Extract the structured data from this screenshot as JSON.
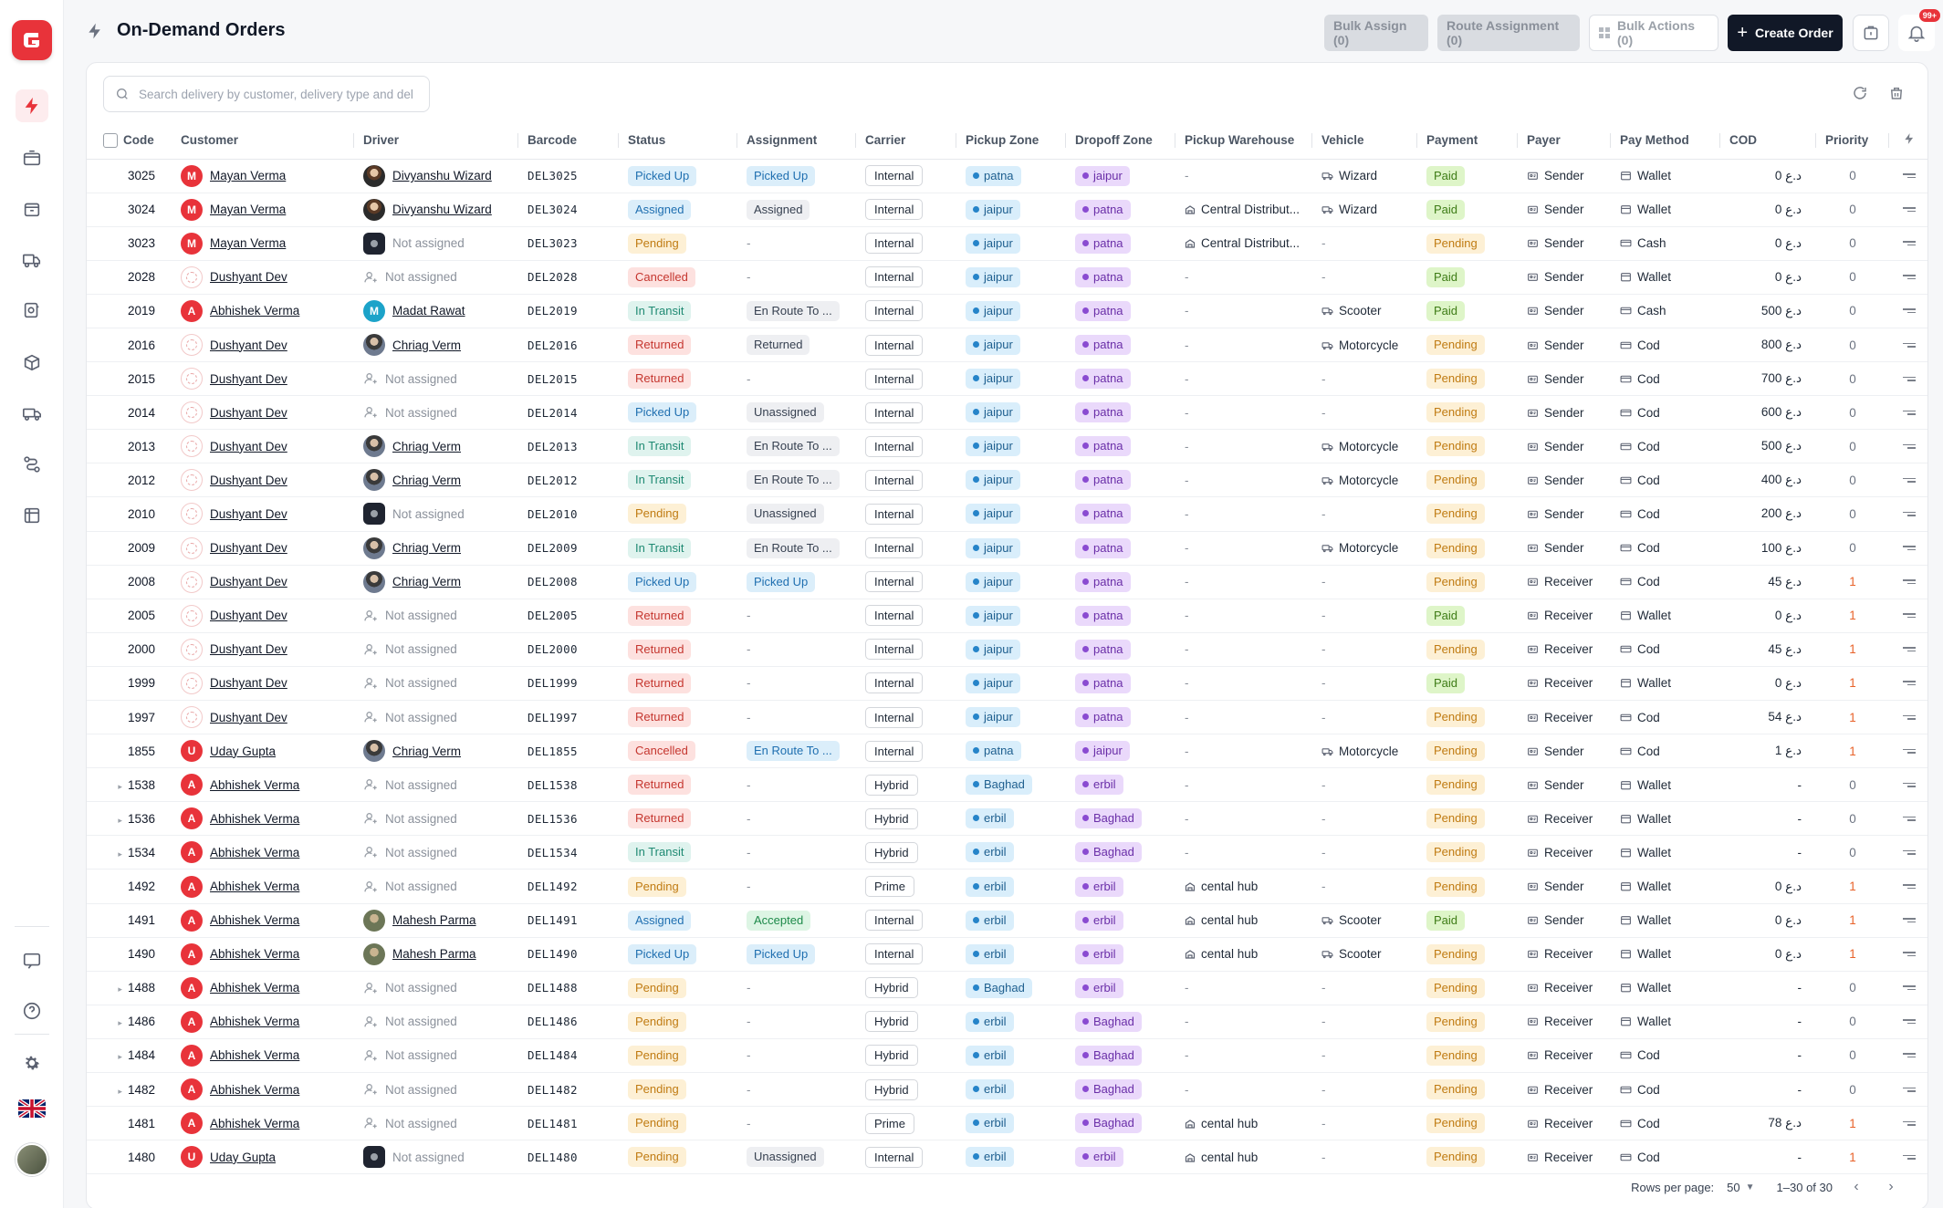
{
  "page": {
    "title": "On-Demand Orders",
    "bulk_assign": "Bulk Assign (0)",
    "route_assignment": "Route Assignment (0)",
    "bulk_actions": "Bulk Actions (0)",
    "create_order": "Create Order",
    "notifications_badge": "99+"
  },
  "search": {
    "placeholder": "Search delivery by customer, delivery type and del"
  },
  "columns": [
    "Code",
    "Customer",
    "Driver",
    "Barcode",
    "Status",
    "Assignment",
    "Carrier",
    "Pickup Zone",
    "Dropoff Zone",
    "Pickup Warehouse",
    "Vehicle",
    "Payment",
    "Payer",
    "Pay Method",
    "COD",
    "Priority"
  ],
  "not_assigned_label": "Not assigned",
  "rows": [
    {
      "code": "3025",
      "exp": false,
      "cust": "Mayan Verma",
      "cav": "M",
      "ctype": "red",
      "drv": "Divyanshu Wizard",
      "dav": "photo1",
      "bar": "DEL3025",
      "st": "Picked Up",
      "stc": "st-picked",
      "as": "Picked Up",
      "asc": "st-picked",
      "car": "Internal",
      "pz": "patna",
      "pzc": "zone-blue",
      "dz": "jaipur",
      "dzc": "zone-purple",
      "wh": "-",
      "veh": "Wizard",
      "pay": "Paid",
      "payc": "pay-paid",
      "payer": "Sender",
      "pm": "Wallet",
      "cod": "0 د.ع",
      "pr": "0"
    },
    {
      "code": "3024",
      "exp": false,
      "cust": "Mayan Verma",
      "cav": "M",
      "ctype": "red",
      "drv": "Divyanshu Wizard",
      "dav": "photo1",
      "bar": "DEL3024",
      "st": "Assigned",
      "stc": "st-assigned",
      "as": "Assigned",
      "asc": "as-grey",
      "car": "Internal",
      "pz": "jaipur",
      "pzc": "zone-blue",
      "dz": "patna",
      "dzc": "zone-purple",
      "wh": "Central Distribut...",
      "veh": "Wizard",
      "pay": "Paid",
      "payc": "pay-paid",
      "payer": "Sender",
      "pm": "Wallet",
      "cod": "0 د.ع",
      "pr": "0"
    },
    {
      "code": "3023",
      "exp": false,
      "cust": "Mayan Verma",
      "cav": "M",
      "ctype": "red",
      "drv": "",
      "dav": "dark",
      "bar": "DEL3023",
      "st": "Pending",
      "stc": "st-pending",
      "as": "-",
      "asc": "",
      "car": "Internal",
      "pz": "jaipur",
      "pzc": "zone-blue",
      "dz": "patna",
      "dzc": "zone-purple",
      "wh": "Central Distribut...",
      "veh": "-",
      "pay": "Pending",
      "payc": "pay-pending",
      "payer": "Sender",
      "pm": "Cash",
      "cod": "0 د.ع",
      "pr": "0"
    },
    {
      "code": "2028",
      "exp": false,
      "cust": "Dushyant Dev",
      "cav": "",
      "ctype": "blank",
      "drv": "",
      "dav": "ghost",
      "bar": "DEL2028",
      "st": "Cancelled",
      "stc": "st-cancelled",
      "as": "-",
      "asc": "",
      "car": "Internal",
      "pz": "jaipur",
      "pzc": "zone-blue",
      "dz": "patna",
      "dzc": "zone-purple",
      "wh": "-",
      "veh": "-",
      "pay": "Paid",
      "payc": "pay-paid",
      "payer": "Sender",
      "pm": "Wallet",
      "cod": "0 د.ع",
      "pr": "0"
    },
    {
      "code": "2019",
      "exp": false,
      "cust": "Abhishek Verma",
      "cav": "A",
      "ctype": "red",
      "drv": "Madat Rawat",
      "dav": "teal",
      "dinit": "M",
      "bar": "DEL2019",
      "st": "In Transit",
      "stc": "st-transit",
      "as": "En Route To ...",
      "asc": "as-grey",
      "car": "Internal",
      "pz": "jaipur",
      "pzc": "zone-blue",
      "dz": "patna",
      "dzc": "zone-purple",
      "wh": "-",
      "veh": "Scooter",
      "pay": "Paid",
      "payc": "pay-paid",
      "payer": "Sender",
      "pm": "Cash",
      "cod": "500 د.ع",
      "pr": "0"
    },
    {
      "code": "2016",
      "exp": false,
      "cust": "Dushyant Dev",
      "cav": "",
      "ctype": "blank",
      "drv": "Chriag Verm",
      "dav": "photo2",
      "bar": "DEL2016",
      "st": "Returned",
      "stc": "st-returned",
      "as": "Returned",
      "asc": "as-grey",
      "car": "Internal",
      "pz": "jaipur",
      "pzc": "zone-blue",
      "dz": "patna",
      "dzc": "zone-purple",
      "wh": "-",
      "veh": "Motorcycle",
      "pay": "Pending",
      "payc": "pay-pending",
      "payer": "Sender",
      "pm": "Cod",
      "cod": "800 د.ع",
      "pr": "0"
    },
    {
      "code": "2015",
      "exp": false,
      "cust": "Dushyant Dev",
      "cav": "",
      "ctype": "blank",
      "drv": "",
      "dav": "ghost",
      "bar": "DEL2015",
      "st": "Returned",
      "stc": "st-returned",
      "as": "-",
      "asc": "",
      "car": "Internal",
      "pz": "jaipur",
      "pzc": "zone-blue",
      "dz": "patna",
      "dzc": "zone-purple",
      "wh": "-",
      "veh": "-",
      "pay": "Pending",
      "payc": "pay-pending",
      "payer": "Sender",
      "pm": "Cod",
      "cod": "700 د.ع",
      "pr": "0"
    },
    {
      "code": "2014",
      "exp": false,
      "cust": "Dushyant Dev",
      "cav": "",
      "ctype": "blank",
      "drv": "",
      "dav": "ghost",
      "bar": "DEL2014",
      "st": "Picked Up",
      "stc": "st-picked",
      "as": "Unassigned",
      "asc": "as-grey",
      "car": "Internal",
      "pz": "jaipur",
      "pzc": "zone-blue",
      "dz": "patna",
      "dzc": "zone-purple",
      "wh": "-",
      "veh": "-",
      "pay": "Pending",
      "payc": "pay-pending",
      "payer": "Sender",
      "pm": "Cod",
      "cod": "600 د.ع",
      "pr": "0"
    },
    {
      "code": "2013",
      "exp": false,
      "cust": "Dushyant Dev",
      "cav": "",
      "ctype": "blank",
      "drv": "Chriag Verm",
      "dav": "photo2",
      "bar": "DEL2013",
      "st": "In Transit",
      "stc": "st-transit",
      "as": "En Route To ...",
      "asc": "as-grey",
      "car": "Internal",
      "pz": "jaipur",
      "pzc": "zone-blue",
      "dz": "patna",
      "dzc": "zone-purple",
      "wh": "-",
      "veh": "Motorcycle",
      "pay": "Pending",
      "payc": "pay-pending",
      "payer": "Sender",
      "pm": "Cod",
      "cod": "500 د.ع",
      "pr": "0"
    },
    {
      "code": "2012",
      "exp": false,
      "cust": "Dushyant Dev",
      "cav": "",
      "ctype": "blank",
      "drv": "Chriag Verm",
      "dav": "photo2",
      "bar": "DEL2012",
      "st": "In Transit",
      "stc": "st-transit",
      "as": "En Route To ...",
      "asc": "as-grey",
      "car": "Internal",
      "pz": "jaipur",
      "pzc": "zone-blue",
      "dz": "patna",
      "dzc": "zone-purple",
      "wh": "-",
      "veh": "Motorcycle",
      "pay": "Pending",
      "payc": "pay-pending",
      "payer": "Sender",
      "pm": "Cod",
      "cod": "400 د.ع",
      "pr": "0"
    },
    {
      "code": "2010",
      "exp": false,
      "cust": "Dushyant Dev",
      "cav": "",
      "ctype": "blank",
      "drv": "",
      "dav": "dark",
      "bar": "DEL2010",
      "st": "Pending",
      "stc": "st-pending",
      "as": "Unassigned",
      "asc": "as-grey",
      "car": "Internal",
      "pz": "jaipur",
      "pzc": "zone-blue",
      "dz": "patna",
      "dzc": "zone-purple",
      "wh": "-",
      "veh": "-",
      "pay": "Pending",
      "payc": "pay-pending",
      "payer": "Sender",
      "pm": "Cod",
      "cod": "200 د.ع",
      "pr": "0"
    },
    {
      "code": "2009",
      "exp": false,
      "cust": "Dushyant Dev",
      "cav": "",
      "ctype": "blank",
      "drv": "Chriag Verm",
      "dav": "photo2",
      "bar": "DEL2009",
      "st": "In Transit",
      "stc": "st-transit",
      "as": "En Route To ...",
      "asc": "as-grey",
      "car": "Internal",
      "pz": "jaipur",
      "pzc": "zone-blue",
      "dz": "patna",
      "dzc": "zone-purple",
      "wh": "-",
      "veh": "Motorcycle",
      "pay": "Pending",
      "payc": "pay-pending",
      "payer": "Sender",
      "pm": "Cod",
      "cod": "100 د.ع",
      "pr": "0"
    },
    {
      "code": "2008",
      "exp": false,
      "cust": "Dushyant Dev",
      "cav": "",
      "ctype": "blank",
      "drv": "Chriag Verm",
      "dav": "photo2",
      "bar": "DEL2008",
      "st": "Picked Up",
      "stc": "st-picked",
      "as": "Picked Up",
      "asc": "st-picked",
      "car": "Internal",
      "pz": "jaipur",
      "pzc": "zone-blue",
      "dz": "patna",
      "dzc": "zone-purple",
      "wh": "-",
      "veh": "-",
      "pay": "Pending",
      "payc": "pay-pending",
      "payer": "Receiver",
      "pm": "Cod",
      "cod": "45 د.ع",
      "pr": "1"
    },
    {
      "code": "2005",
      "exp": false,
      "cust": "Dushyant Dev",
      "cav": "",
      "ctype": "blank",
      "drv": "",
      "dav": "ghost",
      "bar": "DEL2005",
      "st": "Returned",
      "stc": "st-returned",
      "as": "-",
      "asc": "",
      "car": "Internal",
      "pz": "jaipur",
      "pzc": "zone-blue",
      "dz": "patna",
      "dzc": "zone-purple",
      "wh": "-",
      "veh": "-",
      "pay": "Paid",
      "payc": "pay-paid",
      "payer": "Receiver",
      "pm": "Wallet",
      "cod": "0 د.ع",
      "pr": "1"
    },
    {
      "code": "2000",
      "exp": false,
      "cust": "Dushyant Dev",
      "cav": "",
      "ctype": "blank",
      "drv": "",
      "dav": "ghost",
      "bar": "DEL2000",
      "st": "Returned",
      "stc": "st-returned",
      "as": "-",
      "asc": "",
      "car": "Internal",
      "pz": "jaipur",
      "pzc": "zone-blue",
      "dz": "patna",
      "dzc": "zone-purple",
      "wh": "-",
      "veh": "-",
      "pay": "Pending",
      "payc": "pay-pending",
      "payer": "Receiver",
      "pm": "Cod",
      "cod": "45 د.ع",
      "pr": "1"
    },
    {
      "code": "1999",
      "exp": false,
      "cust": "Dushyant Dev",
      "cav": "",
      "ctype": "blank",
      "drv": "",
      "dav": "ghost",
      "bar": "DEL1999",
      "st": "Returned",
      "stc": "st-returned",
      "as": "-",
      "asc": "",
      "car": "Internal",
      "pz": "jaipur",
      "pzc": "zone-blue",
      "dz": "patna",
      "dzc": "zone-purple",
      "wh": "-",
      "veh": "-",
      "pay": "Paid",
      "payc": "pay-paid",
      "payer": "Receiver",
      "pm": "Wallet",
      "cod": "0 د.ع",
      "pr": "1"
    },
    {
      "code": "1997",
      "exp": false,
      "cust": "Dushyant Dev",
      "cav": "",
      "ctype": "blank",
      "drv": "",
      "dav": "ghost",
      "bar": "DEL1997",
      "st": "Returned",
      "stc": "st-returned",
      "as": "-",
      "asc": "",
      "car": "Internal",
      "pz": "jaipur",
      "pzc": "zone-blue",
      "dz": "patna",
      "dzc": "zone-purple",
      "wh": "-",
      "veh": "-",
      "pay": "Pending",
      "payc": "pay-pending",
      "payer": "Receiver",
      "pm": "Cod",
      "cod": "54 د.ع",
      "pr": "1"
    },
    {
      "code": "1855",
      "exp": false,
      "cust": "Uday Gupta",
      "cav": "U",
      "ctype": "red",
      "drv": "Chriag Verm",
      "dav": "photo2",
      "bar": "DEL1855",
      "st": "Cancelled",
      "stc": "st-cancelled",
      "as": "En Route To ...",
      "asc": "st-picked",
      "car": "Internal",
      "pz": "patna",
      "pzc": "zone-blue",
      "dz": "jaipur",
      "dzc": "zone-purple",
      "wh": "-",
      "veh": "Motorcycle",
      "pay": "Pending",
      "payc": "pay-pending",
      "payer": "Sender",
      "pm": "Cod",
      "cod": "1 د.ع",
      "pr": "1"
    },
    {
      "code": "1538",
      "exp": true,
      "cust": "Abhishek Verma",
      "cav": "A",
      "ctype": "red",
      "drv": "",
      "dav": "ghost",
      "bar": "DEL1538",
      "st": "Returned",
      "stc": "st-returned",
      "as": "-",
      "asc": "",
      "car": "Hybrid",
      "pz": "Baghad",
      "pzc": "zone-blue",
      "dz": "erbil",
      "dzc": "zone-purple",
      "wh": "-",
      "veh": "-",
      "pay": "Pending",
      "payc": "pay-pending",
      "payer": "Sender",
      "pm": "Wallet",
      "cod": "-",
      "pr": "0"
    },
    {
      "code": "1536",
      "exp": true,
      "cust": "Abhishek Verma",
      "cav": "A",
      "ctype": "red",
      "drv": "",
      "dav": "ghost",
      "bar": "DEL1536",
      "st": "Returned",
      "stc": "st-returned",
      "as": "-",
      "asc": "",
      "car": "Hybrid",
      "pz": "erbil",
      "pzc": "zone-blue",
      "dz": "Baghad",
      "dzc": "zone-purple",
      "wh": "-",
      "veh": "-",
      "pay": "Pending",
      "payc": "pay-pending",
      "payer": "Receiver",
      "pm": "Wallet",
      "cod": "-",
      "pr": "0"
    },
    {
      "code": "1534",
      "exp": true,
      "cust": "Abhishek Verma",
      "cav": "A",
      "ctype": "red",
      "drv": "",
      "dav": "ghost",
      "bar": "DEL1534",
      "st": "In Transit",
      "stc": "st-transit",
      "as": "-",
      "asc": "",
      "car": "Hybrid",
      "pz": "erbil",
      "pzc": "zone-blue",
      "dz": "Baghad",
      "dzc": "zone-purple",
      "wh": "-",
      "veh": "-",
      "pay": "Pending",
      "payc": "pay-pending",
      "payer": "Receiver",
      "pm": "Wallet",
      "cod": "-",
      "pr": "0"
    },
    {
      "code": "1492",
      "exp": false,
      "cust": "Abhishek Verma",
      "cav": "A",
      "ctype": "red",
      "drv": "",
      "dav": "ghost",
      "bar": "DEL1492",
      "st": "Pending",
      "stc": "st-pending",
      "as": "-",
      "asc": "",
      "car": "Prime",
      "pz": "erbil",
      "pzc": "zone-blue",
      "dz": "erbil",
      "dzc": "zone-purple",
      "wh": "cental hub",
      "veh": "-",
      "pay": "Pending",
      "payc": "pay-pending",
      "payer": "Sender",
      "pm": "Wallet",
      "cod": "0 د.ع",
      "pr": "1"
    },
    {
      "code": "1491",
      "exp": false,
      "cust": "Abhishek Verma",
      "cav": "A",
      "ctype": "red",
      "drv": "Mahesh Parma",
      "dav": "photo3",
      "bar": "DEL1491",
      "st": "Assigned",
      "stc": "st-assigned",
      "as": "Accepted",
      "asc": "as-accepted",
      "car": "Internal",
      "pz": "erbil",
      "pzc": "zone-blue",
      "dz": "erbil",
      "dzc": "zone-purple",
      "wh": "cental hub",
      "veh": "Scooter",
      "pay": "Paid",
      "payc": "pay-paid",
      "payer": "Sender",
      "pm": "Wallet",
      "cod": "0 د.ع",
      "pr": "1"
    },
    {
      "code": "1490",
      "exp": false,
      "cust": "Abhishek Verma",
      "cav": "A",
      "ctype": "red",
      "drv": "Mahesh Parma",
      "dav": "photo3",
      "bar": "DEL1490",
      "st": "Picked Up",
      "stc": "st-picked",
      "as": "Picked Up",
      "asc": "st-picked",
      "car": "Internal",
      "pz": "erbil",
      "pzc": "zone-blue",
      "dz": "erbil",
      "dzc": "zone-purple",
      "wh": "cental hub",
      "veh": "Scooter",
      "pay": "Pending",
      "payc": "pay-pending",
      "payer": "Receiver",
      "pm": "Wallet",
      "cod": "0 د.ع",
      "pr": "1"
    },
    {
      "code": "1488",
      "exp": true,
      "cust": "Abhishek Verma",
      "cav": "A",
      "ctype": "red",
      "drv": "",
      "dav": "ghost",
      "bar": "DEL1488",
      "st": "Pending",
      "stc": "st-pending",
      "as": "-",
      "asc": "",
      "car": "Hybrid",
      "pz": "Baghad",
      "pzc": "zone-blue",
      "dz": "erbil",
      "dzc": "zone-purple",
      "wh": "-",
      "veh": "-",
      "pay": "Pending",
      "payc": "pay-pending",
      "payer": "Receiver",
      "pm": "Wallet",
      "cod": "-",
      "pr": "0"
    },
    {
      "code": "1486",
      "exp": true,
      "cust": "Abhishek Verma",
      "cav": "A",
      "ctype": "red",
      "drv": "",
      "dav": "ghost",
      "bar": "DEL1486",
      "st": "Pending",
      "stc": "st-pending",
      "as": "-",
      "asc": "",
      "car": "Hybrid",
      "pz": "erbil",
      "pzc": "zone-blue",
      "dz": "Baghad",
      "dzc": "zone-purple",
      "wh": "-",
      "veh": "-",
      "pay": "Pending",
      "payc": "pay-pending",
      "payer": "Receiver",
      "pm": "Wallet",
      "cod": "-",
      "pr": "0"
    },
    {
      "code": "1484",
      "exp": true,
      "cust": "Abhishek Verma",
      "cav": "A",
      "ctype": "red",
      "drv": "",
      "dav": "ghost",
      "bar": "DEL1484",
      "st": "Pending",
      "stc": "st-pending",
      "as": "-",
      "asc": "",
      "car": "Hybrid",
      "pz": "erbil",
      "pzc": "zone-blue",
      "dz": "Baghad",
      "dzc": "zone-purple",
      "wh": "-",
      "veh": "-",
      "pay": "Pending",
      "payc": "pay-pending",
      "payer": "Receiver",
      "pm": "Cod",
      "cod": "-",
      "pr": "0"
    },
    {
      "code": "1482",
      "exp": true,
      "cust": "Abhishek Verma",
      "cav": "A",
      "ctype": "red",
      "drv": "",
      "dav": "ghost",
      "bar": "DEL1482",
      "st": "Pending",
      "stc": "st-pending",
      "as": "-",
      "asc": "",
      "car": "Hybrid",
      "pz": "erbil",
      "pzc": "zone-blue",
      "dz": "Baghad",
      "dzc": "zone-purple",
      "wh": "-",
      "veh": "-",
      "pay": "Pending",
      "payc": "pay-pending",
      "payer": "Receiver",
      "pm": "Cod",
      "cod": "-",
      "pr": "0"
    },
    {
      "code": "1481",
      "exp": false,
      "cust": "Abhishek Verma",
      "cav": "A",
      "ctype": "red",
      "drv": "",
      "dav": "ghost",
      "bar": "DEL1481",
      "st": "Pending",
      "stc": "st-pending",
      "as": "-",
      "asc": "",
      "car": "Prime",
      "pz": "erbil",
      "pzc": "zone-blue",
      "dz": "Baghad",
      "dzc": "zone-purple",
      "wh": "cental hub",
      "veh": "-",
      "pay": "Pending",
      "payc": "pay-pending",
      "payer": "Receiver",
      "pm": "Cod",
      "cod": "78 د.ع",
      "pr": "1"
    },
    {
      "code": "1480",
      "exp": false,
      "cust": "Uday Gupta",
      "cav": "U",
      "ctype": "red",
      "drv": "",
      "dav": "dark",
      "bar": "DEL1480",
      "st": "Pending",
      "stc": "st-pending",
      "as": "Unassigned",
      "asc": "as-grey",
      "car": "Internal",
      "pz": "erbil",
      "pzc": "zone-blue",
      "dz": "erbil",
      "dzc": "zone-purple",
      "wh": "cental hub",
      "veh": "-",
      "pay": "Pending",
      "payc": "pay-pending",
      "payer": "Receiver",
      "pm": "Cod",
      "cod": "-",
      "pr": "1"
    }
  ],
  "footer": {
    "rows_per_page_label": "Rows per page:",
    "rows_per_page_value": "50",
    "range": "1–30 of 30"
  },
  "colors": {
    "accent": "#e8333a",
    "primary_button": "#111827"
  }
}
